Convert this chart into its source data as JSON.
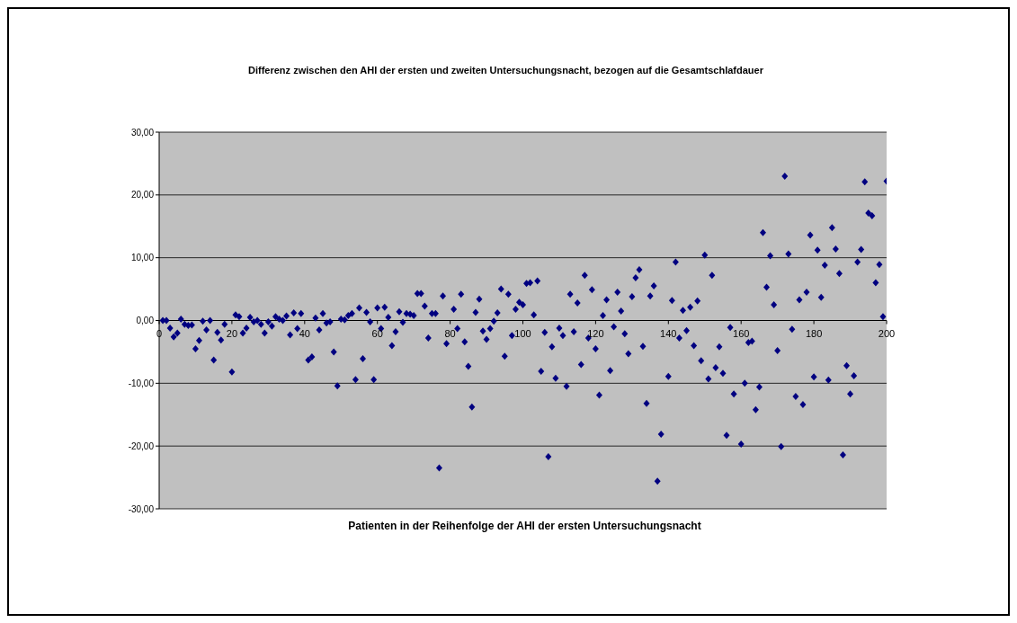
{
  "chart_data": {
    "type": "scatter",
    "title": "Differenz zwischen den AHI der ersten und zweiten Untersuchungsnacht, bezogen auf die Gesamtschlafdauer",
    "xlabel": "Patienten in der Reihenfolge der AHI der ersten Untersuchungsnacht",
    "x": [
      1,
      2,
      3,
      4,
      5,
      6,
      7,
      8,
      9,
      10,
      11,
      12,
      13,
      14,
      15,
      16,
      17,
      18,
      20,
      21,
      22,
      23,
      24,
      25,
      26,
      27,
      28,
      29,
      30,
      31,
      32,
      33,
      34,
      35,
      36,
      37,
      38,
      39,
      41,
      42,
      43,
      44,
      45,
      46,
      47,
      48,
      49,
      50,
      51,
      52,
      53,
      54,
      55,
      56,
      57,
      58,
      59,
      60,
      61,
      62,
      63,
      64,
      65,
      66,
      67,
      68,
      69,
      70,
      71,
      72,
      73,
      74,
      75,
      76,
      77,
      78,
      79,
      81,
      82,
      83,
      84,
      85,
      86,
      87,
      88,
      89,
      90,
      91,
      92,
      93,
      94,
      95,
      96,
      97,
      98,
      99,
      100,
      101,
      102,
      103,
      104,
      105,
      106,
      107,
      108,
      109,
      110,
      111,
      112,
      113,
      114,
      115,
      116,
      117,
      118,
      119,
      120,
      121,
      122,
      123,
      124,
      125,
      126,
      127,
      128,
      129,
      130,
      131,
      132,
      133,
      134,
      135,
      136,
      137,
      138,
      140,
      141,
      142,
      143,
      144,
      145,
      146,
      147,
      148,
      149,
      150,
      151,
      152,
      153,
      154,
      155,
      156,
      157,
      158,
      160,
      161,
      162,
      163,
      164,
      165,
      166,
      167,
      168,
      169,
      170,
      171,
      172,
      173,
      174,
      175,
      176,
      177,
      178,
      179,
      180,
      181,
      182,
      183,
      184,
      185,
      186,
      187,
      188,
      189,
      190,
      191,
      192,
      193,
      194,
      195,
      196,
      197,
      198,
      199,
      200
    ],
    "series": [
      {
        "color": "#000080",
        "values": [
          0,
          0,
          -1.2,
          -2.6,
          -2.0,
          0.2,
          -0.6,
          -0.8,
          -0.7,
          -4.5,
          -3.2,
          -0.1,
          -1.5,
          0,
          -6.3,
          -1.9,
          -3.1,
          -0.6,
          -8.2,
          0.9,
          0.6,
          -2.0,
          -1.2,
          0.5,
          -0.2,
          0,
          -0.6,
          -2.0,
          -0.2,
          -0.9,
          0.6,
          0.2,
          0,
          0.7,
          -2.3,
          1.2,
          -1.3,
          1.1,
          -6.3,
          -5.8,
          0.4,
          -1.5,
          1.1,
          -0.4,
          -0.2,
          -5.0,
          -10.4,
          0.2,
          0.1,
          0.8,
          1.1,
          -9.4,
          2.0,
          -6.1,
          1.3,
          -0.2,
          -9.4,
          2.0,
          -1.3,
          2.1,
          0.5,
          -4.0,
          -1.8,
          1.4,
          -0.3,
          1.1,
          1.0,
          0.8,
          4.3,
          4.3,
          2.3,
          -2.8,
          1.1,
          1.1,
          -23.5,
          3.9,
          -3.7,
          1.8,
          -1.3,
          4.2,
          -3.4,
          -7.3,
          -13.8,
          1.3,
          3.4,
          -1.7,
          -3.0,
          -1.3,
          -0.1,
          1.2,
          5.0,
          -5.7,
          4.2,
          -2.4,
          1.8,
          2.9,
          2.5,
          5.9,
          6.0,
          0.9,
          6.3,
          -8.1,
          -1.9,
          -21.7,
          -4.2,
          -9.2,
          -1.2,
          -2.4,
          -10.5,
          4.2,
          -1.8,
          2.8,
          -7.0,
          7.2,
          -2.8,
          4.9,
          -4.5,
          -11.9,
          0.8,
          3.3,
          -8.0,
          -1.0,
          4.5,
          1.5,
          -2.1,
          -5.3,
          3.8,
          6.8,
          8.1,
          -4.1,
          -13.2,
          3.9,
          5.5,
          -25.6,
          -18.1,
          -8.9,
          3.2,
          9.3,
          -2.8,
          1.6,
          -1.6,
          2.1,
          -4.0,
          3.1,
          -6.4,
          10.4,
          -9.3,
          7.2,
          -7.5,
          -4.2,
          -8.4,
          -18.3,
          -1.1,
          -11.7,
          -19.7,
          -10.0,
          -3.5,
          -3.3,
          -14.2,
          -10.6,
          14.0,
          5.3,
          10.3,
          2.5,
          -4.8,
          -20.1,
          23.0,
          10.6,
          -1.4,
          -12.1,
          3.3,
          -13.4,
          4.5,
          13.6,
          -9.0,
          11.2,
          3.7,
          8.8,
          -9.5,
          14.8,
          11.4,
          7.5,
          -21.4,
          -7.2,
          -11.7,
          -8.8,
          9.3,
          11.3,
          22.1,
          17.1,
          16.7,
          6.0,
          8.9,
          0.6,
          22.2
        ]
      }
    ],
    "xlim": [
      0,
      200
    ],
    "xticks": [
      0,
      20,
      40,
      60,
      80,
      100,
      120,
      140,
      160,
      180,
      200
    ],
    "ylim": [
      -30,
      30
    ],
    "yticks": [
      {
        "value": -30,
        "label": "-30,00"
      },
      {
        "value": -20,
        "label": "-20,00"
      },
      {
        "value": -10,
        "label": "-10,00"
      },
      {
        "value": 0,
        "label": "0,00"
      },
      {
        "value": 10,
        "label": "10,00"
      },
      {
        "value": 20,
        "label": "20,00"
      },
      {
        "value": 30,
        "label": "30,00"
      }
    ],
    "grid": "y",
    "marker": "diamond"
  }
}
